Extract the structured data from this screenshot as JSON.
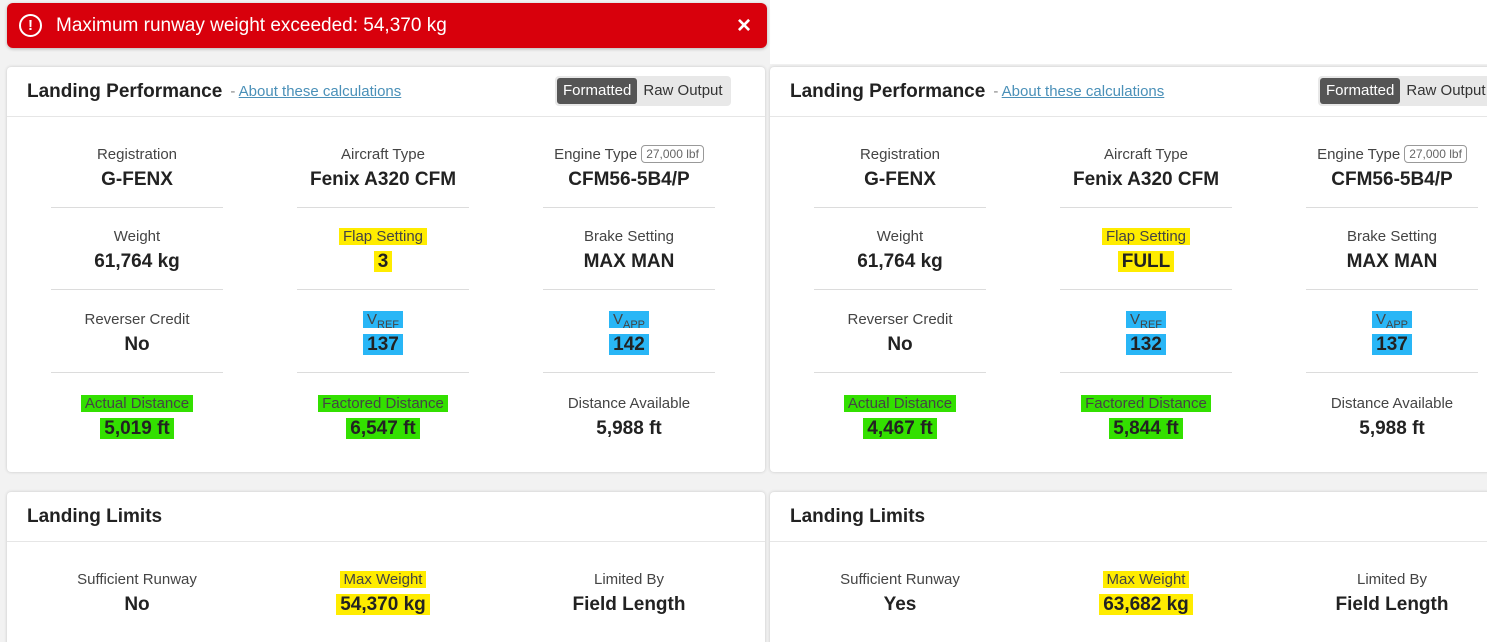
{
  "alert": {
    "icon": "exclamation-circle-icon",
    "message": "Maximum runway weight exceeded: 54,370 kg",
    "close": "×"
  },
  "left": {
    "perf": {
      "title": "Landing Performance",
      "about_prefix": "-",
      "about_link": "About these calculations",
      "tabs": [
        "Formatted",
        "Raw Output"
      ],
      "registration_label": "Registration",
      "registration": "G-FENX",
      "aircraft_label": "Aircraft Type",
      "aircraft": "Fenix A320 CFM",
      "engine_label": "Engine Type",
      "engine_badge": "27,000 lbf",
      "engine": "CFM56-5B4/P",
      "weight_label": "Weight",
      "weight": "61,764 kg",
      "flap_label": "Flap Setting",
      "flap": "3",
      "brake_label": "Brake Setting",
      "brake": "MAX MAN",
      "reverser_label": "Reverser Credit",
      "reverser": "No",
      "vref_v": "V",
      "vref_sub": "REF",
      "vref": "137",
      "vapp_v": "V",
      "vapp_sub": "APP",
      "vapp": "142",
      "actual_label": "Actual Distance",
      "actual": "5,019 ft",
      "factored_label": "Factored Distance",
      "factored": "6,547 ft",
      "available_label": "Distance Available",
      "available": "5,988 ft"
    },
    "limits": {
      "title": "Landing Limits",
      "sufficient_label": "Sufficient Runway",
      "sufficient": "No",
      "maxweight_label": "Max Weight",
      "maxweight": "54,370 kg",
      "limited_label": "Limited By",
      "limited": "Field Length"
    }
  },
  "right": {
    "perf": {
      "title": "Landing Performance",
      "about_prefix": "-",
      "about_link": "About these calculations",
      "tabs": [
        "Formatted",
        "Raw Output"
      ],
      "registration_label": "Registration",
      "registration": "G-FENX",
      "aircraft_label": "Aircraft Type",
      "aircraft": "Fenix A320 CFM",
      "engine_label": "Engine Type",
      "engine_badge": "27,000 lbf",
      "engine": "CFM56-5B4/P",
      "weight_label": "Weight",
      "weight": "61,764 kg",
      "flap_label": "Flap Setting",
      "flap": "FULL",
      "brake_label": "Brake Setting",
      "brake": "MAX MAN",
      "reverser_label": "Reverser Credit",
      "reverser": "No",
      "vref_v": "V",
      "vref_sub": "REF",
      "vref": "132",
      "vapp_v": "V",
      "vapp_sub": "APP",
      "vapp": "137",
      "actual_label": "Actual Distance",
      "actual": "4,467 ft",
      "factored_label": "Factored Distance",
      "factored": "5,844 ft",
      "available_label": "Distance Available",
      "available": "5,988 ft"
    },
    "limits": {
      "title": "Landing Limits",
      "sufficient_label": "Sufficient Runway",
      "sufficient": "Yes",
      "maxweight_label": "Max Weight",
      "maxweight": "63,682 kg",
      "limited_label": "Limited By",
      "limited": "Field Length"
    }
  },
  "colors": {
    "alert": "#d8000c",
    "highlight_yellow": "#ffec00",
    "highlight_blue": "#29b6f6",
    "highlight_green": "#33e000",
    "toggle_active": "#555555"
  }
}
